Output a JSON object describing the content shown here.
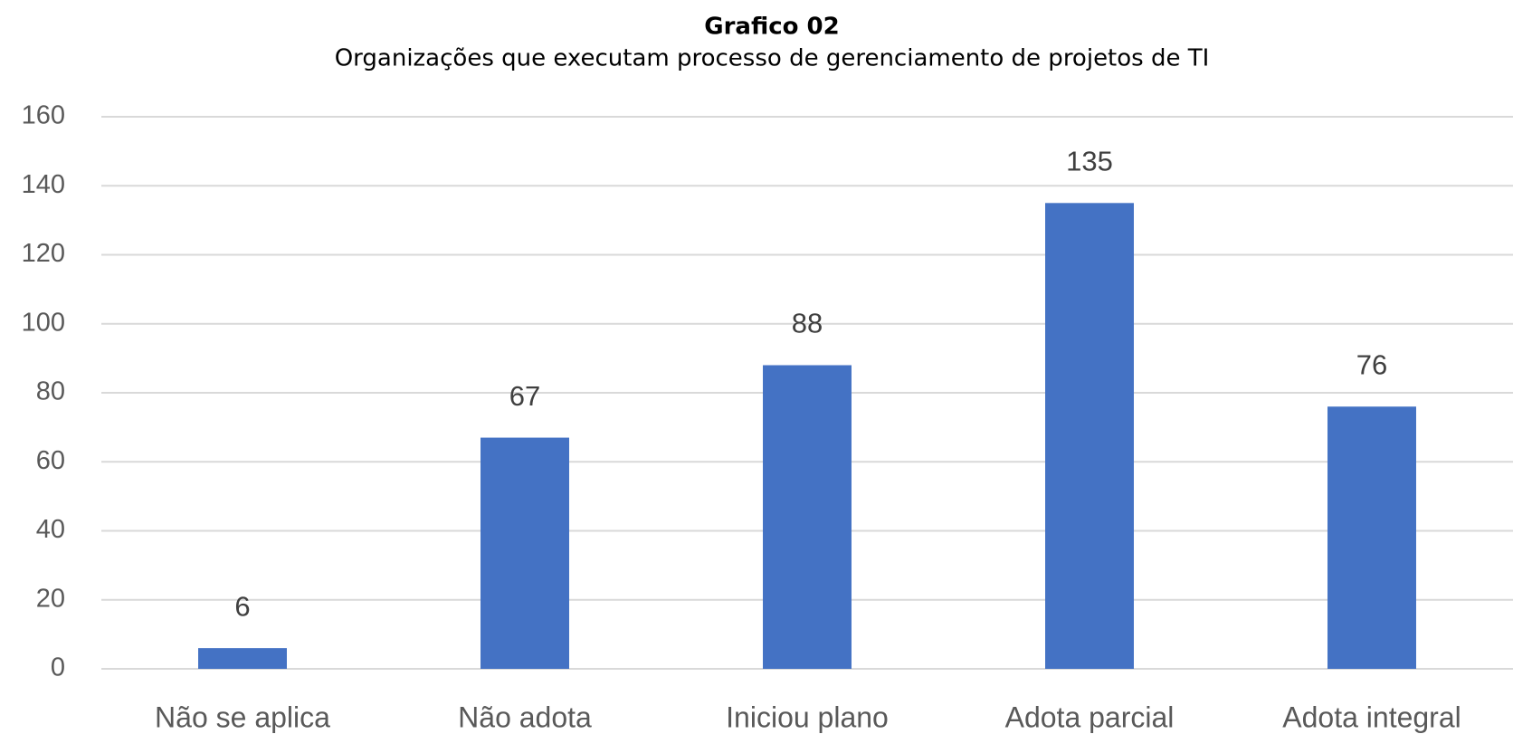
{
  "chart_data": {
    "type": "bar",
    "title": "Grafico 02",
    "subtitle": "Organizações que executam processo de gerenciamento de projetos de TI",
    "categories": [
      "Não se aplica",
      "Não adota",
      "Iniciou plano",
      "Adota parcial",
      "Adota integral"
    ],
    "values": [
      6,
      67,
      88,
      135,
      76
    ],
    "color": "#4472c4",
    "ylim": [
      0,
      160
    ],
    "yticks": [
      0,
      20,
      40,
      60,
      80,
      100,
      120,
      140,
      160
    ],
    "grid": true
  }
}
